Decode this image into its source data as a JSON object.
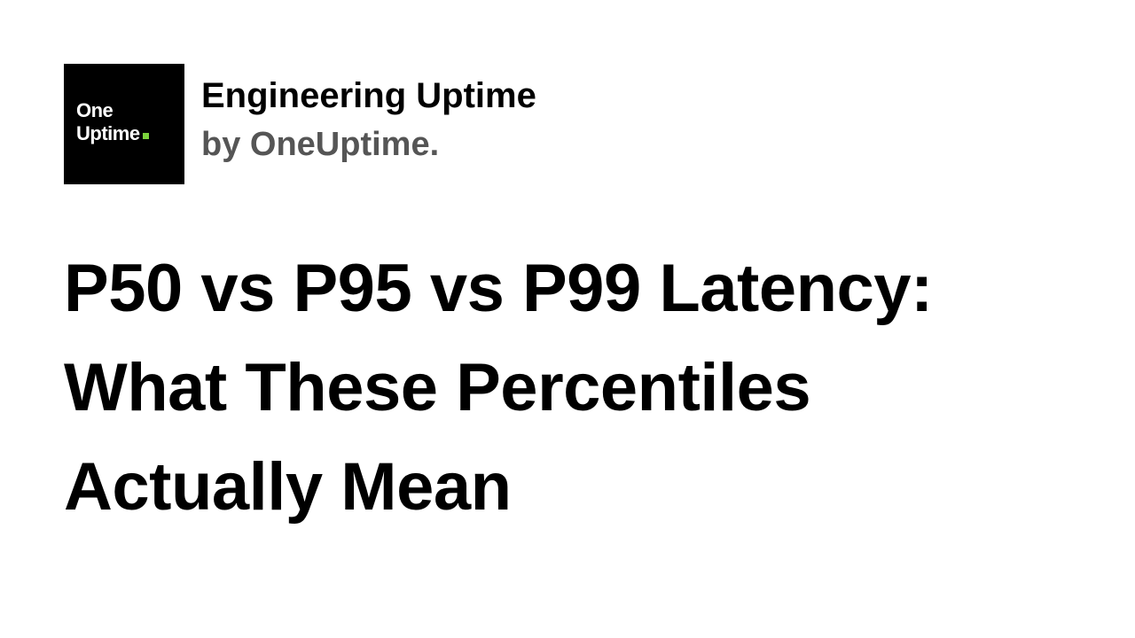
{
  "logo": {
    "line1": "One",
    "line2": "Uptime",
    "accent_color": "#7cd33c",
    "background_color": "#000000"
  },
  "brand": {
    "title": "Engineering Uptime",
    "subtitle": "by OneUptime."
  },
  "headline": {
    "lines": [
      "P50 vs P95 vs P99 Latency:",
      "What These Percentiles",
      "Actually Mean"
    ]
  }
}
